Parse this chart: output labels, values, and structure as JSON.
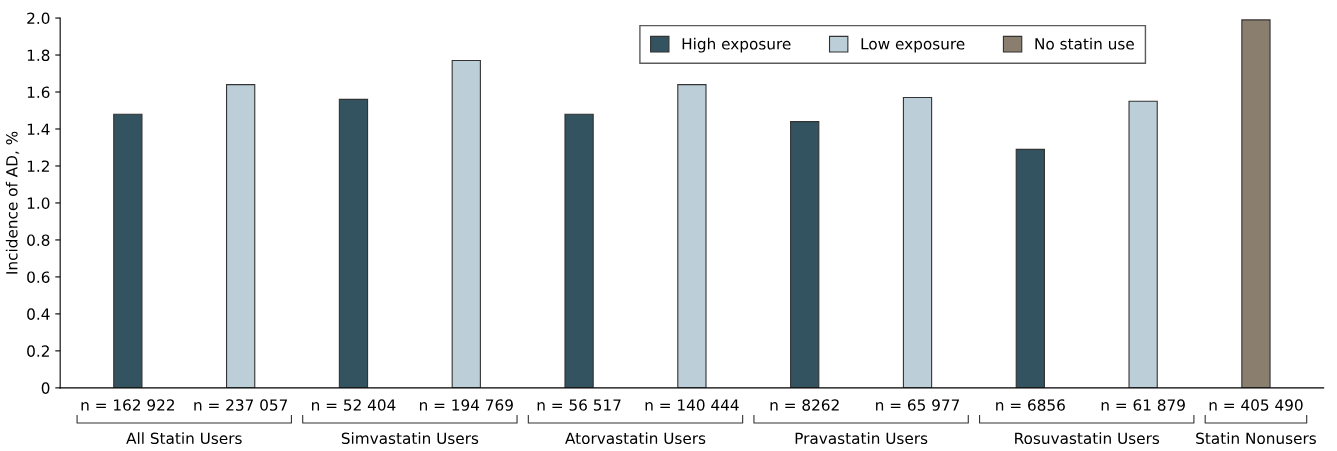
{
  "chart_data": {
    "type": "bar",
    "ylabel": "Incidence of AD, %",
    "categories": [
      "n = 162 922",
      "n = 237 057",
      "n = 52 404",
      "n = 194 769",
      "n = 56 517",
      "n = 140 444",
      "n = 8262",
      "n = 65 977",
      "n = 6856",
      "n = 61 879",
      "n = 405 490"
    ],
    "series": [
      {
        "name": "High exposure",
        "color": "#32535f",
        "values": [
          1.48,
          null,
          1.56,
          null,
          1.48,
          null,
          1.44,
          null,
          1.29,
          null,
          null
        ]
      },
      {
        "name": "Low exposure",
        "color": "#bccfd8",
        "values": [
          null,
          1.64,
          null,
          1.77,
          null,
          1.64,
          null,
          1.57,
          null,
          1.55,
          null
        ]
      },
      {
        "name": "No statin use",
        "color": "#8a7f6e",
        "values": [
          null,
          null,
          null,
          null,
          null,
          null,
          null,
          null,
          null,
          null,
          1.99
        ]
      }
    ],
    "ylim": [
      0,
      2.0
    ],
    "yticks": [
      0,
      0.2,
      0.4,
      0.6,
      0.8,
      {
        "value": 1,
        "label": "1.0"
      },
      1.2,
      1.4,
      1.6,
      1.8,
      {
        "value": 2,
        "label": "2.0"
      }
    ],
    "annotations": [
      "All Statin Users",
      "Simvastatin Users",
      "Atorvastatin Users",
      "Pravastatin Users",
      "Rosuvastatin Users",
      "Statin Nonusers"
    ],
    "legend": "top right",
    "grid": false
  }
}
